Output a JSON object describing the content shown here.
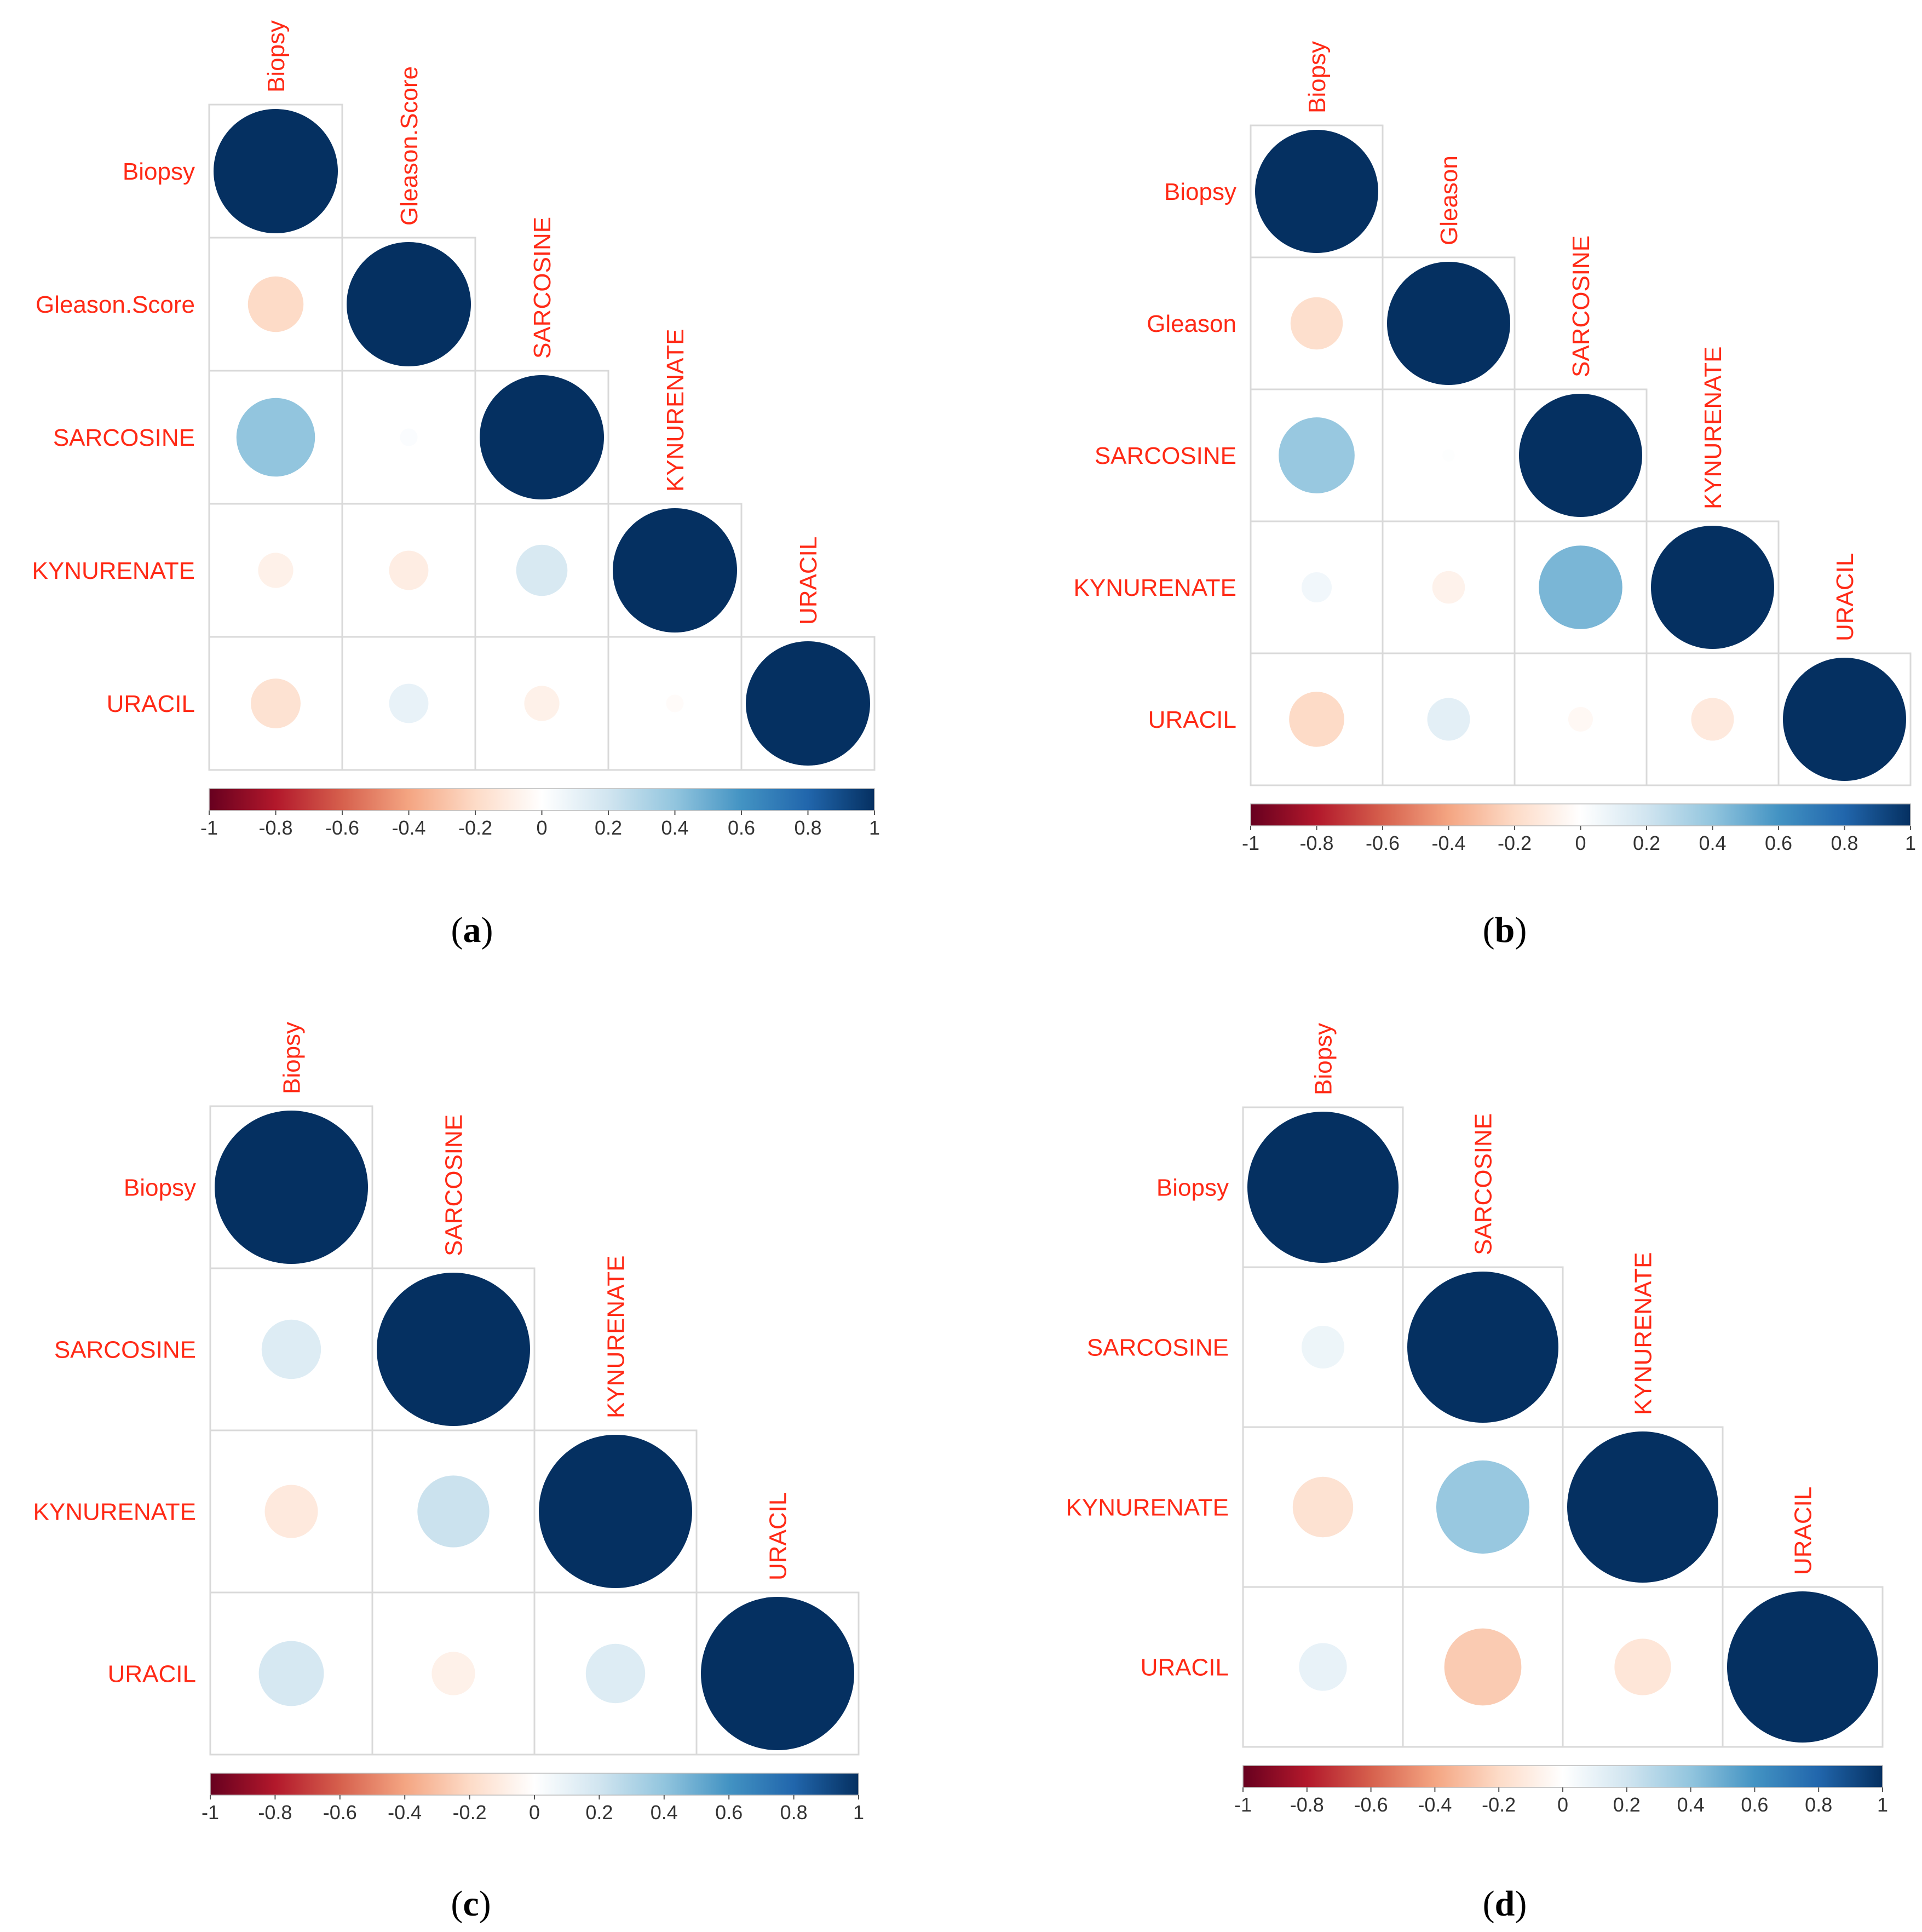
{
  "colors": {
    "label": "#FF2A16",
    "grid": "#D9D9D9",
    "scale": [
      "#67001F",
      "#B2182B",
      "#D6604D",
      "#F4A582",
      "#FDDBC7",
      "#FFFFFF",
      "#D1E5F0",
      "#92C5DE",
      "#4393C3",
      "#2166AC",
      "#053061"
    ]
  },
  "chart_data": [
    {
      "type": "heatmap",
      "subtype": "correlation-circles-lower",
      "caption": "(a)",
      "caption_parts": [
        "(",
        "a",
        ")"
      ],
      "variables": [
        "Biopsy",
        "Gleason.Score",
        "SARCOSINE",
        "KYNURENATE",
        "URACIL"
      ],
      "matrix": [
        [
          1.0,
          null,
          null,
          null,
          null
        ],
        [
          -0.2,
          1.0,
          null,
          null,
          null
        ],
        [
          0.4,
          0.02,
          1.0,
          null,
          null
        ],
        [
          -0.08,
          -0.1,
          0.17,
          1.0,
          null
        ],
        [
          -0.16,
          0.1,
          -0.08,
          -0.02,
          1.0
        ]
      ],
      "colorbar": {
        "range": [
          -1,
          1
        ],
        "ticks": [
          "-1",
          "-0.8",
          "-0.6",
          "-0.4",
          "-0.2",
          "0",
          "0.2",
          "0.4",
          "0.6",
          "0.8",
          "1"
        ]
      }
    },
    {
      "type": "heatmap",
      "subtype": "correlation-circles-lower",
      "caption": "(b)",
      "caption_parts": [
        "(",
        "b",
        ")"
      ],
      "variables": [
        "Biopsy",
        "Gleason",
        "SARCOSINE",
        "KYNURENATE",
        "URACIL"
      ],
      "matrix": [
        [
          1.0,
          null,
          null,
          null,
          null
        ],
        [
          -0.18,
          1.0,
          null,
          null,
          null
        ],
        [
          0.38,
          0.01,
          1.0,
          null,
          null
        ],
        [
          0.06,
          -0.07,
          0.46,
          1.0,
          null
        ],
        [
          -0.2,
          0.12,
          -0.04,
          -0.12,
          1.0
        ]
      ],
      "colorbar": {
        "range": [
          -1,
          1
        ],
        "ticks": [
          "-1",
          "-0.8",
          "-0.6",
          "-0.4",
          "-0.2",
          "0",
          "0.2",
          "0.4",
          "0.6",
          "0.8",
          "1"
        ]
      }
    },
    {
      "type": "heatmap",
      "subtype": "correlation-circles-lower",
      "caption": "(c)",
      "caption_parts": [
        "(",
        "c",
        ")"
      ],
      "variables": [
        "Biopsy",
        "SARCOSINE",
        "KYNURENATE",
        "URACIL"
      ],
      "matrix": [
        [
          1.0,
          null,
          null,
          null
        ],
        [
          0.15,
          1.0,
          null,
          null
        ],
        [
          -0.12,
          0.22,
          1.0,
          null
        ],
        [
          0.18,
          -0.08,
          0.15,
          1.0
        ]
      ],
      "colorbar": {
        "range": [
          -1,
          1
        ],
        "ticks": [
          "-1",
          "-0.8",
          "-0.6",
          "-0.4",
          "-0.2",
          "0",
          "0.2",
          "0.4",
          "0.6",
          "0.8",
          "1"
        ]
      }
    },
    {
      "type": "heatmap",
      "subtype": "correlation-circles-lower",
      "caption": "(d)",
      "caption_parts": [
        "(",
        "d",
        ")"
      ],
      "variables": [
        "Biopsy",
        "SARCOSINE",
        "KYNURENATE",
        "URACIL"
      ],
      "matrix": [
        [
          1.0,
          null,
          null,
          null
        ],
        [
          0.08,
          1.0,
          null,
          null
        ],
        [
          -0.16,
          0.38,
          1.0,
          null
        ],
        [
          0.1,
          -0.26,
          -0.14,
          1.0
        ]
      ],
      "colorbar": {
        "range": [
          -1,
          1
        ],
        "ticks": [
          "-1",
          "-0.8",
          "-0.6",
          "-0.4",
          "-0.2",
          "0",
          "0.2",
          "0.4",
          "0.6",
          "0.8",
          "1"
        ]
      }
    }
  ]
}
